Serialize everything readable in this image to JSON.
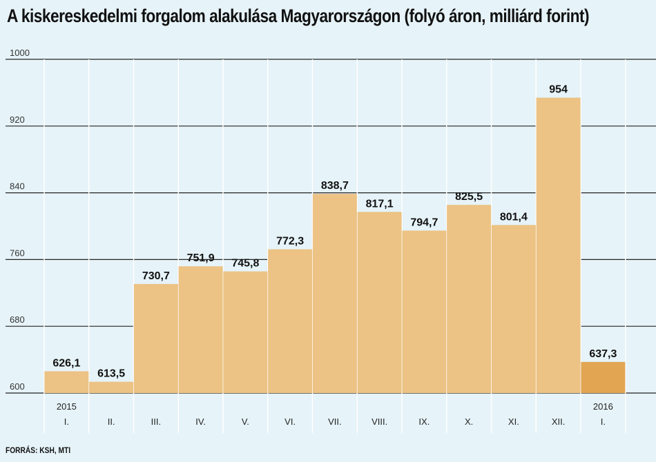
{
  "title": "A kiskereskedelmi forgalom alakulása Magyarországon (folyó áron, milliárd forint)",
  "source": "FORRÁS: KSH, MTI",
  "colors": {
    "background": "#e6f3f8",
    "bar": "#ecc385",
    "highlight_bar": "#e2a653",
    "grid": "#222222",
    "divider": "#ffffff"
  },
  "chart_data": {
    "type": "bar",
    "title": "A kiskereskedelmi forgalom alakulása Magyarországon (folyó áron, milliárd forint)",
    "categories": [
      "I.",
      "II.",
      "III.",
      "IV.",
      "V.",
      "VI.",
      "VII.",
      "VIII.",
      "IX.",
      "X.",
      "XI.",
      "XII.",
      "I."
    ],
    "years": [
      {
        "label": "2015",
        "start_index": 0
      },
      {
        "label": "2016",
        "start_index": 12
      }
    ],
    "values": [
      626.1,
      613.5,
      730.7,
      751.9,
      745.8,
      772.3,
      838.7,
      817.1,
      794.7,
      825.5,
      801.4,
      954,
      637.3
    ],
    "value_labels": [
      "626,1",
      "613,5",
      "730,7",
      "751,9",
      "745,8",
      "772,3",
      "838,7",
      "817,1",
      "794,7",
      "825,5",
      "801,4",
      "954",
      "637,3"
    ],
    "highlight_index": 12,
    "ylim": [
      600,
      1000
    ],
    "yticks": [
      600,
      680,
      760,
      840,
      920,
      1000
    ],
    "xlabel": "",
    "ylabel": "",
    "grid": true
  }
}
